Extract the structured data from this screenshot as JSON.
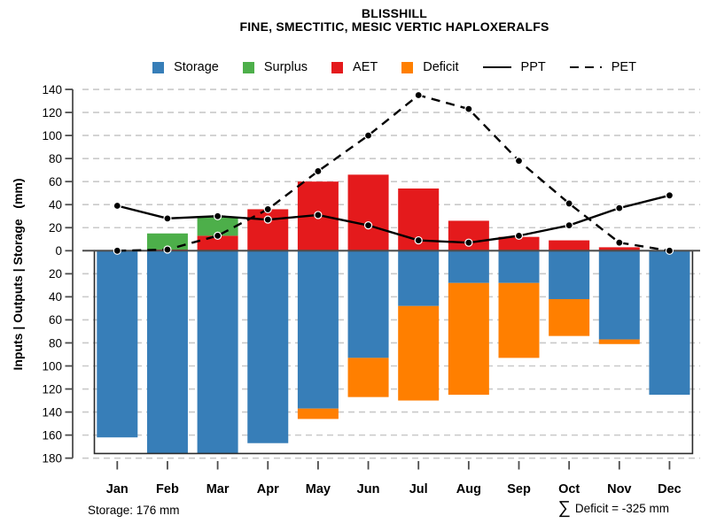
{
  "chart_data": {
    "type": "bar",
    "subtype": "monthly-water-balance-with-line-overlays",
    "title": "BLISSHILL",
    "subtitle": "FINE, SMECTITIC, MESIC VERTIC HAPLOXERALFS",
    "ylabel": "Inputs | Outputs | Storage   (mm)",
    "categories": [
      "Jan",
      "Feb",
      "Mar",
      "Apr",
      "May",
      "Jun",
      "Jul",
      "Aug",
      "Sep",
      "Oct",
      "Nov",
      "Dec"
    ],
    "ylim": [
      -180,
      140
    ],
    "ytick_step": 20,
    "ytick_labels_absolute_value": true,
    "grid": "horizontal-dashed",
    "storage_capacity_mm": 176,
    "series": [
      {
        "name": "AET",
        "type": "bar",
        "direction": "up",
        "stack_order": 1,
        "color": "#E41A1C",
        "values": [
          0,
          1,
          13,
          36,
          60,
          66,
          54,
          26,
          12,
          9,
          3,
          0
        ]
      },
      {
        "name": "Surplus",
        "type": "bar",
        "direction": "up",
        "stack_order": 2,
        "color": "#4DAF4A",
        "values": [
          0,
          14,
          16,
          0,
          0,
          0,
          0,
          0,
          0,
          0,
          0,
          0
        ]
      },
      {
        "name": "Storage",
        "type": "bar",
        "direction": "down",
        "stack_order": 1,
        "color": "#377EB8",
        "values": [
          162,
          176,
          176,
          167,
          137,
          93,
          48,
          28,
          28,
          42,
          77,
          125
        ]
      },
      {
        "name": "Deficit",
        "type": "bar",
        "direction": "down",
        "stack_order": 2,
        "color": "#FF7F00",
        "values": [
          0,
          0,
          0,
          0,
          9,
          34,
          82,
          97,
          65,
          32,
          4,
          0
        ]
      },
      {
        "name": "PPT",
        "type": "line",
        "style": "solid",
        "color": "#000000",
        "values": [
          39,
          28,
          30,
          27,
          31,
          22,
          9,
          7,
          13,
          22,
          37,
          48
        ]
      },
      {
        "name": "PET",
        "type": "line",
        "style": "dashed",
        "color": "#000000",
        "values": [
          0,
          1,
          13,
          36,
          69,
          100,
          135,
          123,
          78,
          41,
          7,
          0
        ]
      }
    ],
    "annotations": {
      "storage": "Storage: 176 mm",
      "deficit_sigma": "∑",
      "deficit_sum": "Deficit = -325 mm"
    }
  },
  "legend": [
    {
      "label": "Storage",
      "swatch": "square",
      "color": "#377EB8"
    },
    {
      "label": "Surplus",
      "swatch": "square",
      "color": "#4DAF4A"
    },
    {
      "label": "AET",
      "swatch": "square",
      "color": "#E41A1C"
    },
    {
      "label": "Deficit",
      "swatch": "square",
      "color": "#FF7F00"
    },
    {
      "label": "PPT",
      "swatch": "line",
      "color": "#000000"
    },
    {
      "label": "PET",
      "swatch": "dash",
      "color": "#000000"
    }
  ]
}
